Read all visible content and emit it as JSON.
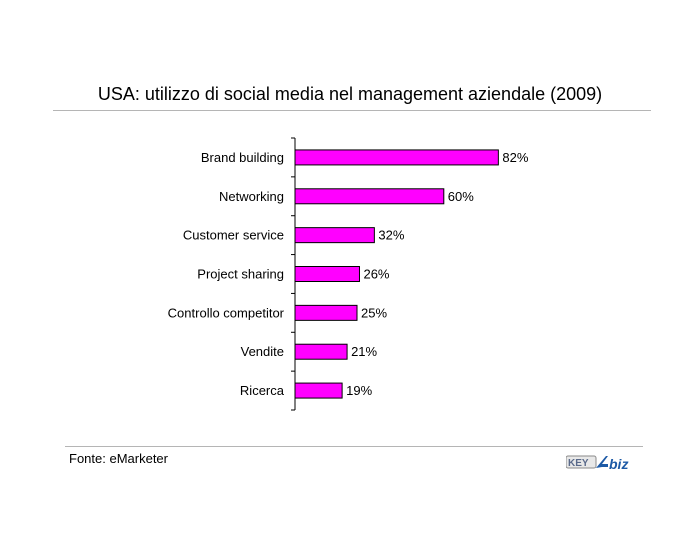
{
  "header": {
    "title": "USA: utilizzo di social media nel management aziendale (2009)"
  },
  "footer": {
    "source": "Fonte: eMarketer",
    "logo_text": "KEY4biz"
  },
  "colors": {
    "bar": "#ff00ff",
    "bar_stroke": "#000000"
  },
  "chart_data": {
    "type": "bar",
    "orientation": "horizontal",
    "categories": [
      "Brand building",
      "Networking",
      "Customer service",
      "Project sharing",
      "Controllo competitor",
      "Vendite",
      "Ricerca"
    ],
    "values": [
      82,
      60,
      32,
      26,
      25,
      21,
      19
    ],
    "data_labels": [
      "82%",
      "60%",
      "32%",
      "26%",
      "25%",
      "21%",
      "19%"
    ],
    "unit": "%",
    "xlim": [
      0,
      100
    ],
    "grid": false,
    "legend": "none"
  }
}
